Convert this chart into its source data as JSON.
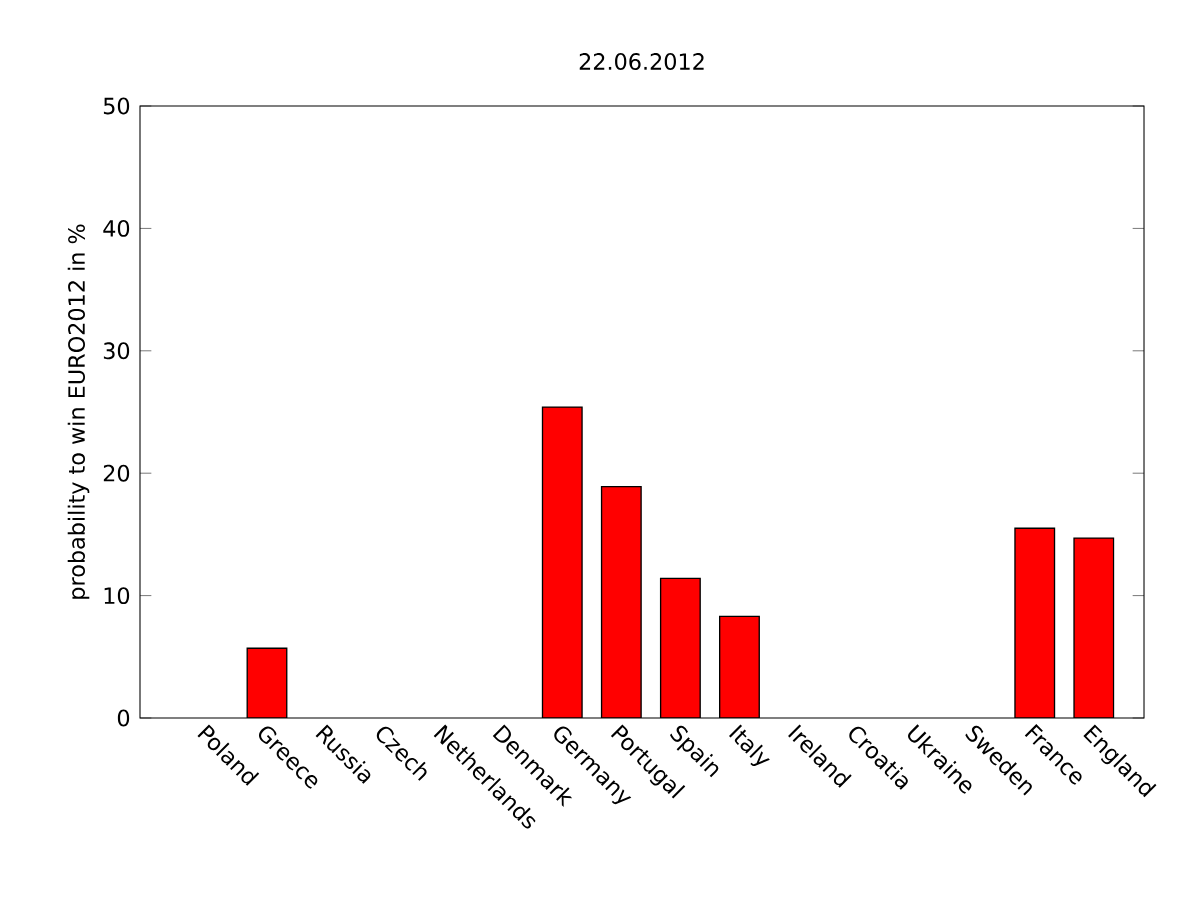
{
  "chart_data": {
    "type": "bar",
    "title": "22.06.2012",
    "ylabel": "probability to win EURO2012 in %",
    "categories": [
      "Poland",
      "Greece",
      "Russia",
      "Czech",
      "Netherlands",
      "Denmark",
      "Germany",
      "Portugal",
      "Spain",
      "Italy",
      "Ireland",
      "Croatia",
      "Ukraine",
      "Sweden",
      "France",
      "England"
    ],
    "values": [
      0,
      5.7,
      0,
      0,
      0,
      0,
      25.4,
      18.9,
      11.4,
      8.3,
      0,
      0,
      0,
      0,
      15.5,
      14.7
    ],
    "color": "#ff0000",
    "ylim": [
      0,
      50
    ],
    "yticks": [
      0,
      10,
      20,
      30,
      40,
      50
    ],
    "grid": false
  }
}
